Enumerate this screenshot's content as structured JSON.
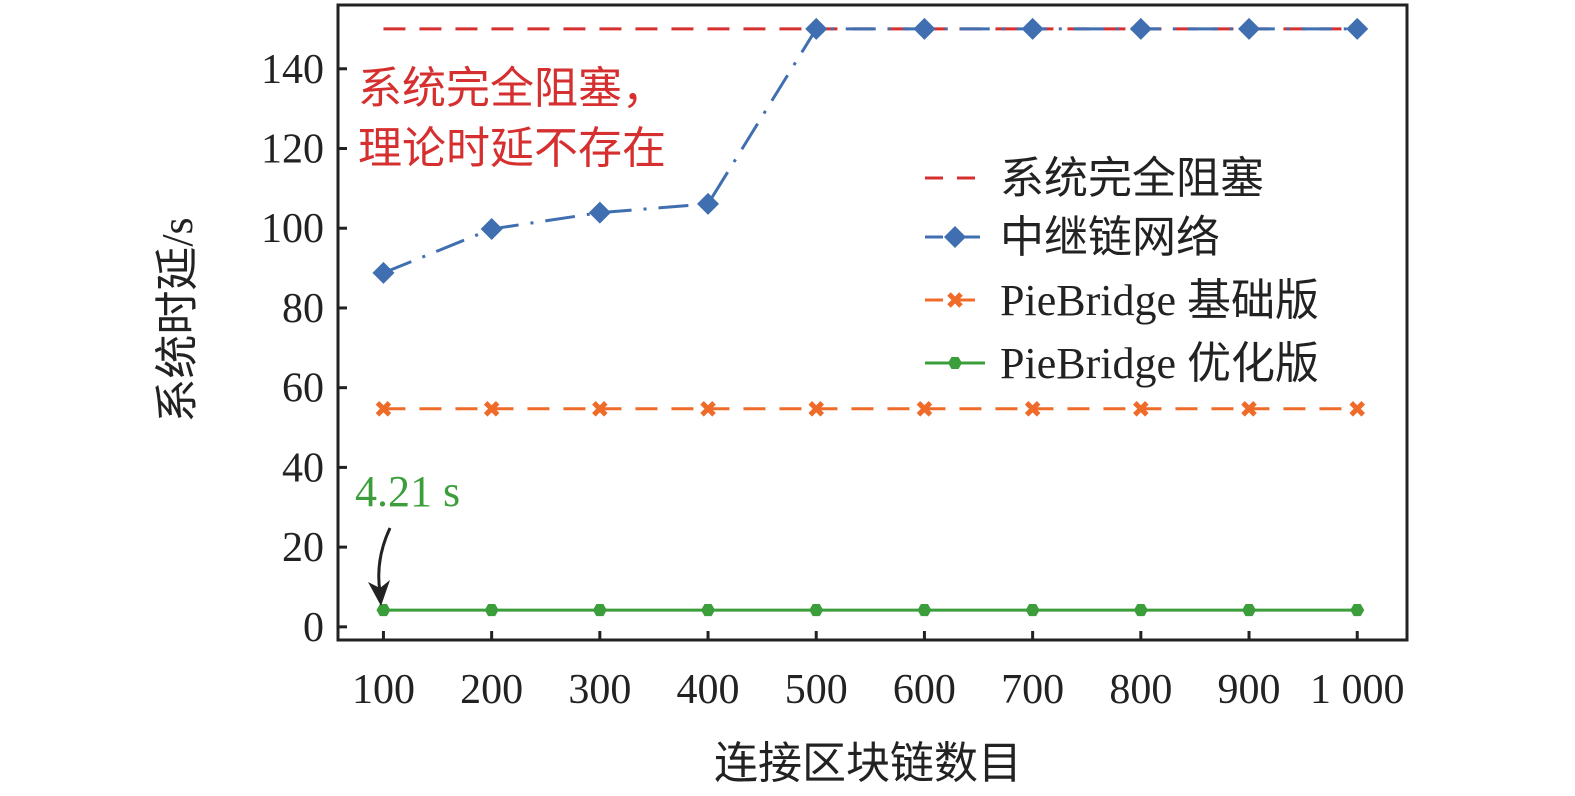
{
  "chart_data": {
    "type": "line",
    "xlabel": "连接区块链数目",
    "ylabel": "系统时延/s",
    "x": [
      100,
      200,
      300,
      400,
      500,
      600,
      700,
      800,
      900,
      1000
    ],
    "xtick_labels": [
      "100",
      "200",
      "300",
      "400",
      "500",
      "600",
      "700",
      "800",
      "900",
      "1 000"
    ],
    "yticks": [
      0,
      20,
      40,
      60,
      80,
      100,
      120,
      140
    ],
    "xlim": [
      58,
      1046
    ],
    "ylim": [
      -3.3,
      156
    ],
    "grid": false,
    "legend_position": "right",
    "series": [
      {
        "name": "系统完全阻塞",
        "values": [
          150,
          150,
          150,
          150,
          150,
          150,
          150,
          150,
          150,
          150
        ],
        "color": "#d62f2f",
        "style": "dashed",
        "marker": "none"
      },
      {
        "name": "中继链网络",
        "values": [
          88.8,
          99.8,
          103.9,
          106.1,
          150,
          150,
          150,
          150,
          150,
          150
        ],
        "color": "#3f6fb0",
        "style": "dashdot",
        "marker": "diamond"
      },
      {
        "name": "PieBridge 基础版",
        "values": [
          54.7,
          54.7,
          54.7,
          54.7,
          54.7,
          54.7,
          54.7,
          54.7,
          54.7,
          54.7
        ],
        "color": "#ef6b2a",
        "style": "dashed",
        "marker": "x"
      },
      {
        "name": "PieBridge 优化版",
        "values": [
          4.21,
          4.21,
          4.21,
          4.21,
          4.21,
          4.21,
          4.21,
          4.21,
          4.21,
          4.21
        ],
        "color": "#3b9e3b",
        "style": "solid",
        "marker": "hexagon"
      }
    ],
    "annotations": [
      {
        "text_lines": [
          "系统完全阻塞，",
          "理论时延不存在"
        ],
        "color": "#d62f2f"
      },
      {
        "text_lines": [
          "4.21 s"
        ],
        "color": "#3b9e3b",
        "arrow": true
      }
    ]
  }
}
